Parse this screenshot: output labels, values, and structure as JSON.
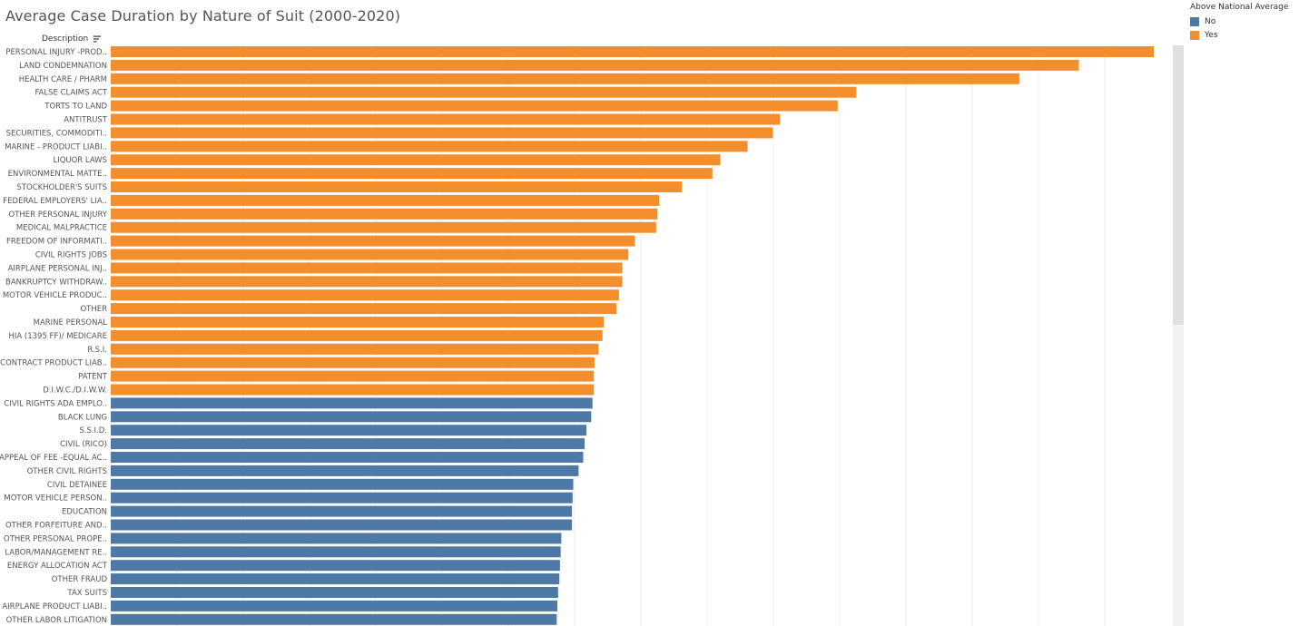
{
  "chart_data": {
    "type": "bar",
    "orientation": "horizontal",
    "title": "Average Case Duration by Nature of Suit (2000-2020)",
    "category_header": "Description",
    "legend": {
      "title": "Above National Average",
      "placement": "top-right",
      "items": [
        {
          "label": "No",
          "color": "#4e79a7"
        },
        {
          "label": "Yes",
          "color": "#f28e2b"
        }
      ]
    },
    "xlim": [
      0,
      1600
    ],
    "grid": "vertical",
    "bars": [
      {
        "label": "PERSONAL INJURY -PROD..",
        "value": 1574,
        "above": "Yes"
      },
      {
        "label": "LAND CONDEMNATION",
        "value": 1461,
        "above": "Yes"
      },
      {
        "label": "HEALTH CARE / PHARM",
        "value": 1371,
        "above": "Yes"
      },
      {
        "label": "FALSE CLAIMS ACT",
        "value": 1125,
        "above": "Yes"
      },
      {
        "label": "TORTS TO LAND",
        "value": 1097,
        "above": "Yes"
      },
      {
        "label": "ANTITRUST",
        "value": 1010,
        "above": "Yes"
      },
      {
        "label": "SECURITIES, COMMODITI..",
        "value": 999,
        "above": "Yes"
      },
      {
        "label": "MARINE - PRODUCT LIABI..",
        "value": 961,
        "above": "Yes"
      },
      {
        "label": "LIQUOR LAWS",
        "value": 920,
        "above": "Yes"
      },
      {
        "label": "ENVIRONMENTAL MATTE..",
        "value": 908,
        "above": "Yes"
      },
      {
        "label": "STOCKHOLDER'S SUITS",
        "value": 862,
        "above": "Yes"
      },
      {
        "label": "FEDERAL EMPLOYERS' LIA..",
        "value": 828,
        "above": "Yes"
      },
      {
        "label": "OTHER PERSONAL INJURY",
        "value": 825,
        "above": "Yes"
      },
      {
        "label": "MEDICAL MALPRACTICE",
        "value": 823,
        "above": "Yes"
      },
      {
        "label": "FREEDOM OF INFORMATI..",
        "value": 791,
        "above": "Yes"
      },
      {
        "label": "CIVIL RIGHTS JOBS",
        "value": 781,
        "above": "Yes"
      },
      {
        "label": "AIRPLANE PERSONAL INJ..",
        "value": 772,
        "above": "Yes"
      },
      {
        "label": "BANKRUPTCY WITHDRAW..",
        "value": 772,
        "above": "Yes"
      },
      {
        "label": "MOTOR VEHICLE PRODUC..",
        "value": 767,
        "above": "Yes"
      },
      {
        "label": "OTHER",
        "value": 763,
        "above": "Yes"
      },
      {
        "label": "MARINE PERSONAL",
        "value": 744,
        "above": "Yes"
      },
      {
        "label": "HIA (1395 FF)/ MEDICARE",
        "value": 742,
        "above": "Yes"
      },
      {
        "label": "R.S.I.",
        "value": 736,
        "above": "Yes"
      },
      {
        "label": "CONTRACT PRODUCT LIAB..",
        "value": 730,
        "above": "Yes"
      },
      {
        "label": "PATENT",
        "value": 729,
        "above": "Yes"
      },
      {
        "label": "D.I.W.C./D.I.W.W.",
        "value": 729,
        "above": "Yes"
      },
      {
        "label": "CIVIL RIGHTS ADA EMPLO..",
        "value": 727,
        "above": "No"
      },
      {
        "label": "BLACK LUNG",
        "value": 725,
        "above": "No"
      },
      {
        "label": "S.S.I.D.",
        "value": 718,
        "above": "No"
      },
      {
        "label": "CIVIL (RICO)",
        "value": 715,
        "above": "No"
      },
      {
        "label": "APPEAL OF FEE -EQUAL AC..",
        "value": 713,
        "above": "No"
      },
      {
        "label": "OTHER CIVIL RIGHTS",
        "value": 706,
        "above": "No"
      },
      {
        "label": "CIVIL DETAINEE",
        "value": 698,
        "above": "No"
      },
      {
        "label": "MOTOR VEHICLE PERSON..",
        "value": 697,
        "above": "No"
      },
      {
        "label": "EDUCATION",
        "value": 696,
        "above": "No"
      },
      {
        "label": "OTHER FORFEITURE AND..",
        "value": 696,
        "above": "No"
      },
      {
        "label": "OTHER PERSONAL PROPE..",
        "value": 680,
        "above": "No"
      },
      {
        "label": "LABOR/MANAGEMENT RE..",
        "value": 679,
        "above": "No"
      },
      {
        "label": "ENERGY ALLOCATION ACT",
        "value": 678,
        "above": "No"
      },
      {
        "label": "OTHER FRAUD",
        "value": 677,
        "above": "No"
      },
      {
        "label": "TAX SUITS",
        "value": 675,
        "above": "No"
      },
      {
        "label": "AIRPLANE PRODUCT LIABI..",
        "value": 674,
        "above": "No"
      },
      {
        "label": "OTHER LABOR LITIGATION",
        "value": 673,
        "above": "No"
      }
    ]
  }
}
